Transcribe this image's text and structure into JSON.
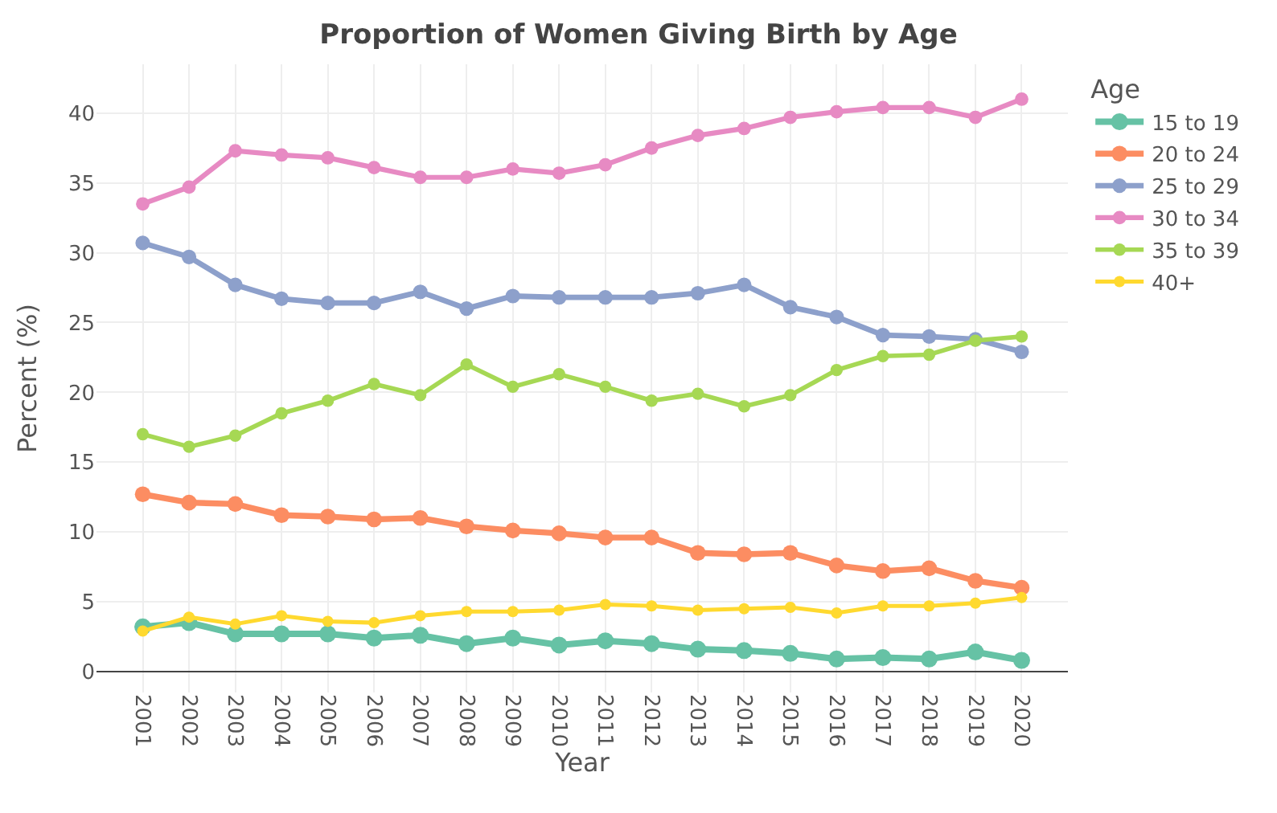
{
  "chart_data": {
    "type": "line",
    "title": "Proportion of Women Giving Birth by Age",
    "xlabel": "Year",
    "ylabel": "Percent (%)",
    "legend_title": "Age",
    "legend": "right",
    "grid": true,
    "marker": "circle",
    "line_style": "solid",
    "categories": [
      "2001",
      "2002",
      "2003",
      "2004",
      "2005",
      "2006",
      "2007",
      "2008",
      "2009",
      "2010",
      "2011",
      "2012",
      "2013",
      "2014",
      "2015",
      "2016",
      "2017",
      "2018",
      "2019",
      "2020"
    ],
    "ylim": [
      -1.5,
      43.5
    ],
    "yticks": [
      0,
      5,
      10,
      15,
      20,
      25,
      30,
      35,
      40
    ],
    "series": [
      {
        "name": "15 to 19",
        "color": "#66c2a5",
        "values": [
          3.2,
          3.5,
          2.7,
          2.7,
          2.7,
          2.4,
          2.6,
          2.0,
          2.4,
          1.9,
          2.2,
          2.0,
          1.6,
          1.5,
          1.3,
          0.9,
          1.0,
          0.9,
          1.4,
          0.8
        ]
      },
      {
        "name": "20 to 24",
        "color": "#fc8d62",
        "values": [
          12.7,
          12.1,
          12.0,
          11.2,
          11.1,
          10.9,
          11.0,
          10.4,
          10.1,
          9.9,
          9.6,
          9.6,
          8.5,
          8.4,
          8.5,
          7.6,
          7.2,
          7.4,
          6.5,
          6.0
        ]
      },
      {
        "name": "25 to 29",
        "color": "#8da0cb",
        "values": [
          30.7,
          29.7,
          27.7,
          26.7,
          26.4,
          26.4,
          27.2,
          26.0,
          26.9,
          26.8,
          26.8,
          26.8,
          27.1,
          27.7,
          26.1,
          25.4,
          24.1,
          24.0,
          23.8,
          22.9
        ]
      },
      {
        "name": "30 to 34",
        "color": "#e78ac3",
        "values": [
          33.5,
          34.7,
          37.3,
          37.0,
          36.8,
          36.1,
          35.4,
          35.4,
          36.0,
          35.7,
          36.3,
          37.5,
          38.4,
          38.9,
          39.7,
          40.1,
          40.4,
          40.4,
          39.7,
          41.0
        ]
      },
      {
        "name": "35 to 39",
        "color": "#a6d854",
        "values": [
          17.0,
          16.1,
          16.9,
          18.5,
          19.4,
          20.6,
          19.8,
          22.0,
          20.4,
          21.3,
          20.4,
          19.4,
          19.9,
          19.0,
          19.8,
          21.6,
          22.6,
          22.7,
          23.7,
          24.0
        ]
      },
      {
        "name": "40+",
        "color": "#ffd92f",
        "values": [
          2.9,
          3.9,
          3.4,
          4.0,
          3.6,
          3.5,
          4.0,
          4.3,
          4.3,
          4.4,
          4.8,
          4.7,
          4.4,
          4.5,
          4.6,
          4.2,
          4.7,
          4.7,
          4.9,
          5.3
        ]
      }
    ]
  }
}
